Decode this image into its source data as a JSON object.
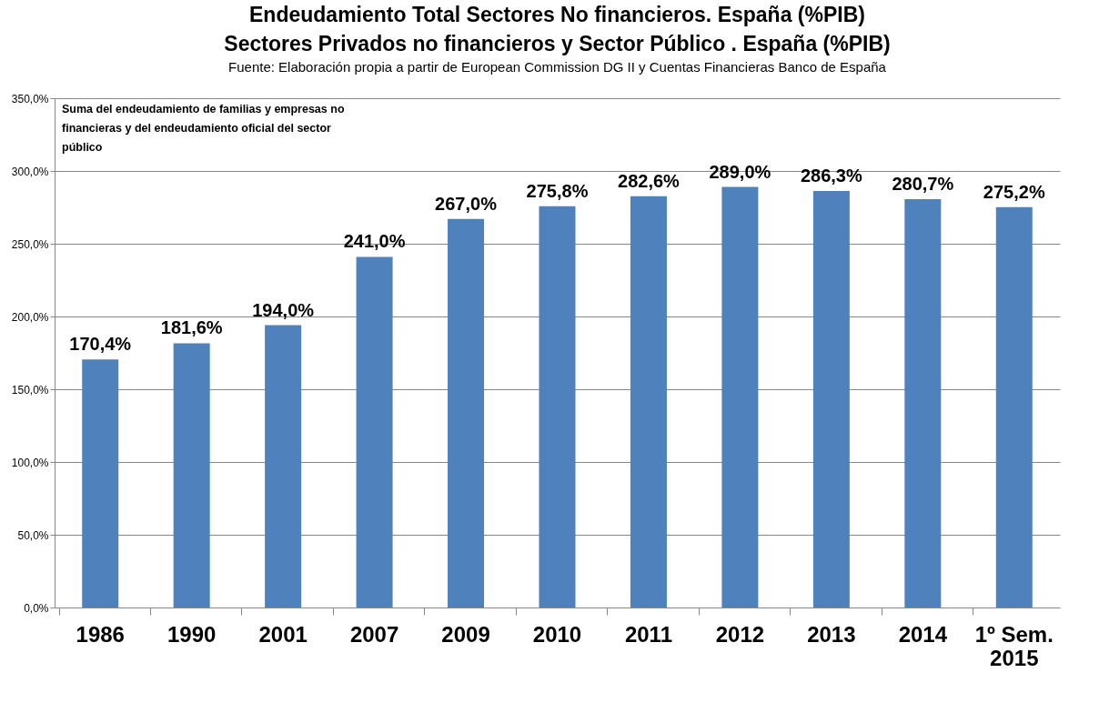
{
  "chart_data": {
    "type": "bar",
    "title": "Endeudamiento Total Sectores No financieros. España (%PIB)",
    "subtitle": "Sectores Privados no financieros y Sector Público . España (%PIB)",
    "annotations": [
      "Fuente: Elaboración propia a partir de European Commission DG II y Cuentas Financieras Banco de España",
      "Suma del endeudamiento de familias y empresas no financieras y del endeudamiento oficial del sector público"
    ],
    "categories": [
      "1986",
      "1990",
      "2001",
      "2007",
      "2009",
      "2010",
      "2011",
      "2012",
      "2013",
      "2014",
      "1º Sem. 2015"
    ],
    "values": [
      170.4,
      181.6,
      194.0,
      241.0,
      267.0,
      275.8,
      282.6,
      289.0,
      286.3,
      280.7,
      275.2
    ],
    "value_labels": [
      "170,4%",
      "181,6%",
      "194,0%",
      "241,0%",
      "267,0%",
      "275,8%",
      "282,6%",
      "289,0%",
      "286,3%",
      "280,7%",
      "275,2%"
    ],
    "color": "#4f81bd",
    "ylim": [
      0,
      350
    ],
    "yticks": [
      {
        "value": 0,
        "label": "0,0%"
      },
      {
        "value": 50,
        "label": "50,0%"
      },
      {
        "value": 100,
        "label": "100,0%"
      },
      {
        "value": 150,
        "label": "150,0%"
      },
      {
        "value": 200,
        "label": "200,0%"
      },
      {
        "value": 250,
        "label": "250,0%"
      },
      {
        "value": 300,
        "label": "300,0%"
      },
      {
        "value": 350,
        "label": "350,0%"
      }
    ],
    "grid": "y"
  }
}
